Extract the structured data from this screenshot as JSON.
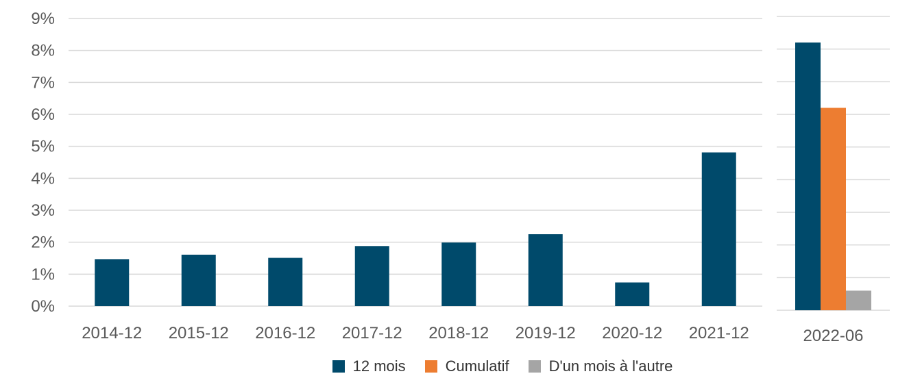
{
  "chart_data": [
    {
      "type": "bar",
      "categories": [
        "2014-12",
        "2015-12",
        "2016-12",
        "2017-12",
        "2018-12",
        "2019-12",
        "2020-12",
        "2021-12"
      ],
      "series": [
        {
          "name": "12 mois",
          "values": [
            1.47,
            1.61,
            1.51,
            1.88,
            1.99,
            2.25,
            0.74,
            4.81
          ]
        }
      ],
      "ylim": [
        0,
        9
      ],
      "y_ticks": [
        "0%",
        "1%",
        "2%",
        "3%",
        "4%",
        "5%",
        "6%",
        "7%",
        "8%",
        "9%"
      ],
      "y_unit": "%",
      "grid": true
    },
    {
      "type": "bar",
      "categories": [
        "2022-06"
      ],
      "series": [
        {
          "name": "12 mois",
          "values": [
            8.2
          ]
        },
        {
          "name": "Cumulatif",
          "values": [
            6.2
          ]
        },
        {
          "name": "D'un mois à l'autre",
          "values": [
            0.6
          ]
        }
      ],
      "ylim": [
        0,
        9
      ],
      "grid": true
    }
  ],
  "legend": [
    {
      "name": "12 mois",
      "color": "#004a6b"
    },
    {
      "name": "Cumulatif",
      "color": "#ed7d31"
    },
    {
      "name": "D'un mois à l'autre",
      "color": "#a5a5a5"
    }
  ],
  "legend_position": "bottom"
}
